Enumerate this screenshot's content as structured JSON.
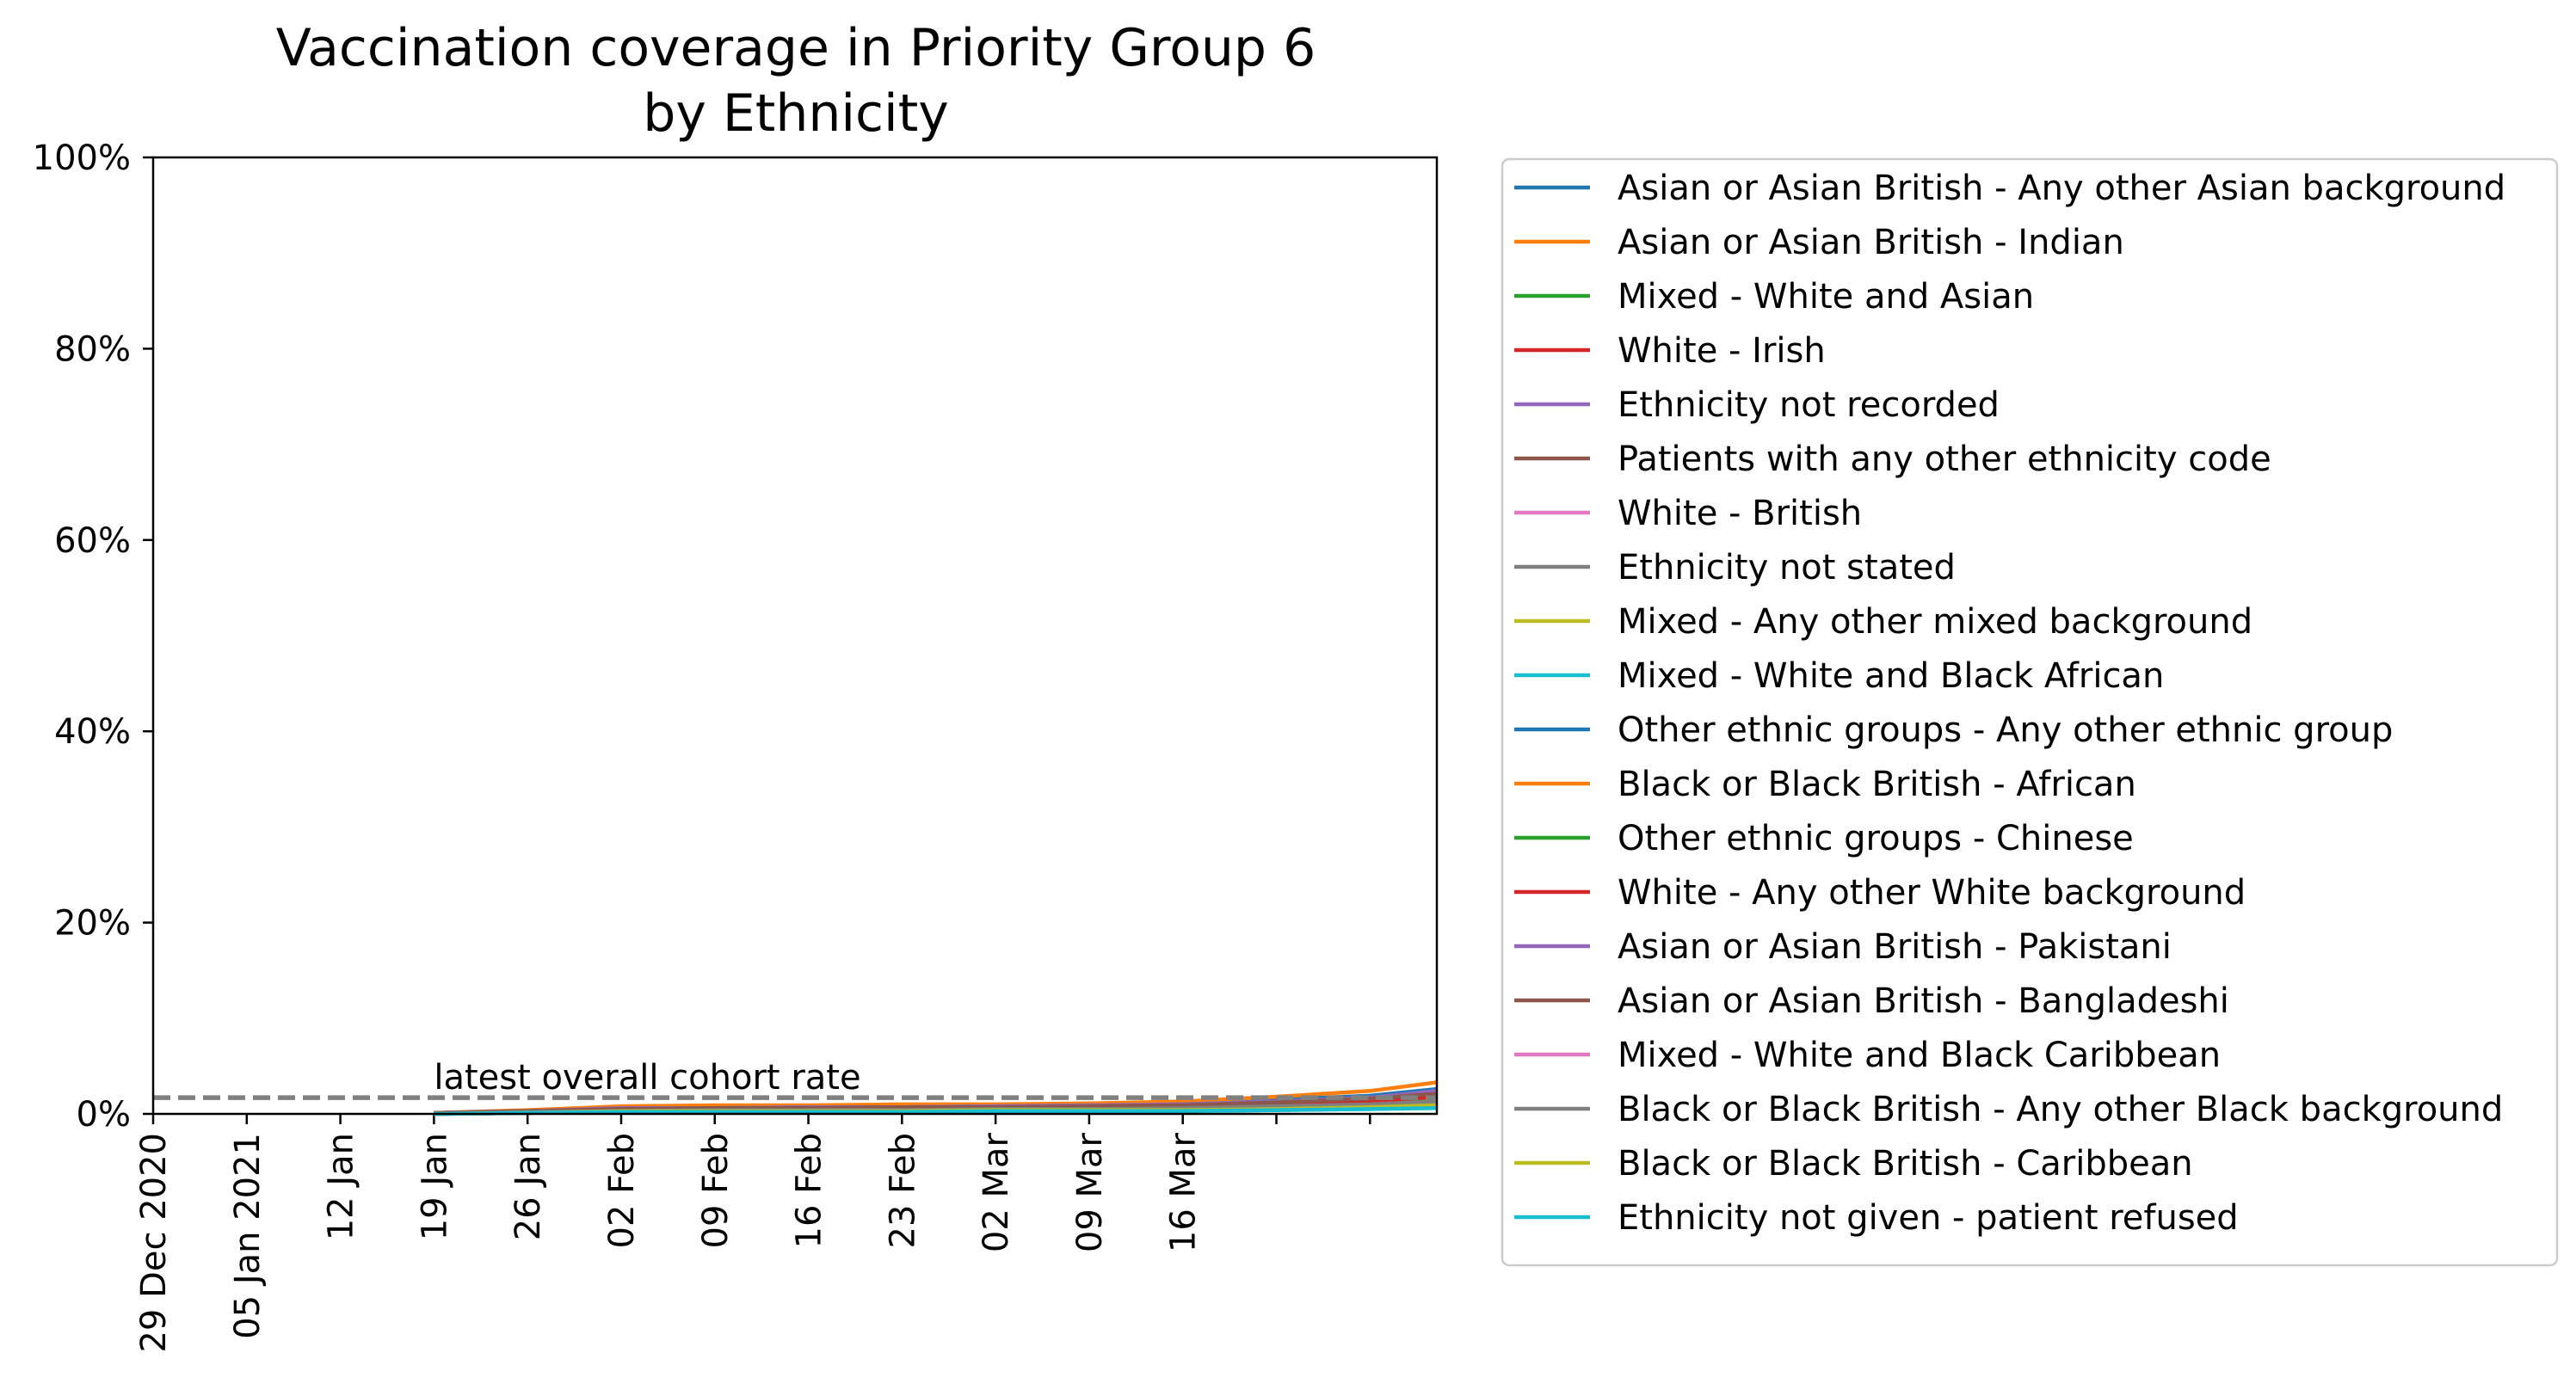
{
  "chart_data": {
    "type": "line",
    "title": [
      "Vaccination coverage in Priority Group 6",
      "by Ethnicity"
    ],
    "xlabel": "",
    "ylabel": "",
    "ylim": [
      0,
      100
    ],
    "y_ticks": [
      0,
      20,
      40,
      60,
      80,
      100
    ],
    "y_tick_labels": [
      "0%",
      "20%",
      "40%",
      "60%",
      "80%",
      "100%"
    ],
    "x_ticks": [
      "2020-12-29",
      "2021-01-05",
      "2021-01-12",
      "2021-01-19",
      "2021-01-26",
      "2021-02-02",
      "2021-02-09",
      "2021-02-16",
      "2021-02-23",
      "2021-03-02",
      "2021-03-09",
      "2021-03-16",
      "2021-03-23",
      "2021-03-30"
    ],
    "x_tick_labels": [
      "29 Dec 2020",
      "05 Jan 2021",
      "12 Jan",
      "19 Jan",
      "26 Jan",
      "02 Feb",
      "09 Feb",
      "16 Feb",
      "23 Feb",
      "02 Mar",
      "09 Mar",
      "16 Mar",
      "",
      ""
    ],
    "xlim": [
      "2020-12-29",
      "2021-04-04"
    ],
    "grid": false,
    "legend_position": "outside-right",
    "x": [
      "2021-01-19",
      "2021-01-26",
      "2021-02-02",
      "2021-02-09",
      "2021-02-16",
      "2021-02-23",
      "2021-03-02",
      "2021-03-09",
      "2021-03-16",
      "2021-03-23",
      "2021-03-30",
      "2021-04-04"
    ],
    "series": [
      {
        "name": "Asian or Asian British - Any other Asian background",
        "color": "#1f77b4",
        "values": [
          0.1,
          0.3,
          0.6,
          0.7,
          0.8,
          0.8,
          0.9,
          1.0,
          1.1,
          1.5,
          1.9,
          2.6
        ]
      },
      {
        "name": "Asian or Asian British - Indian",
        "color": "#ff7f0e",
        "values": [
          0.1,
          0.4,
          0.8,
          0.9,
          0.9,
          1.0,
          1.0,
          1.1,
          1.3,
          1.8,
          2.4,
          3.3
        ]
      },
      {
        "name": "Mixed - White and Asian",
        "color": "#2ca02c",
        "values": [
          0.0,
          0.2,
          0.4,
          0.5,
          0.5,
          0.6,
          0.6,
          0.7,
          0.8,
          1.0,
          1.3,
          1.7
        ]
      },
      {
        "name": "White - Irish",
        "color": "#d62728",
        "values": [
          0.0,
          0.2,
          0.5,
          0.6,
          0.6,
          0.7,
          0.7,
          0.8,
          0.9,
          1.2,
          1.6,
          2.2
        ]
      },
      {
        "name": "Ethnicity not recorded",
        "color": "#9467bd",
        "values": [
          0.0,
          0.1,
          0.3,
          0.3,
          0.4,
          0.4,
          0.4,
          0.5,
          0.5,
          0.7,
          0.9,
          1.2
        ]
      },
      {
        "name": "Patients with any other ethnicity code",
        "color": "#8c564b",
        "values": [
          0.1,
          0.3,
          0.5,
          0.6,
          0.6,
          0.7,
          0.7,
          0.8,
          0.9,
          1.2,
          1.5,
          2.0
        ]
      },
      {
        "name": "White - British",
        "color": "#e377c2",
        "values": [
          0.0,
          0.2,
          0.4,
          0.5,
          0.5,
          0.5,
          0.6,
          0.6,
          0.7,
          0.9,
          1.1,
          1.5
        ]
      },
      {
        "name": "Ethnicity not stated",
        "color": "#7f7f7f",
        "values": [
          0.0,
          0.2,
          0.4,
          0.4,
          0.5,
          0.5,
          0.5,
          0.6,
          0.6,
          0.8,
          1.0,
          1.4
        ]
      },
      {
        "name": "Mixed - Any other mixed background",
        "color": "#bcbd22",
        "values": [
          0.0,
          0.1,
          0.3,
          0.3,
          0.3,
          0.4,
          0.4,
          0.4,
          0.5,
          0.6,
          0.8,
          1.0
        ]
      },
      {
        "name": "Mixed - White and Black African",
        "color": "#17becf",
        "values": [
          0.0,
          0.1,
          0.2,
          0.2,
          0.2,
          0.3,
          0.3,
          0.3,
          0.3,
          0.4,
          0.5,
          0.7
        ]
      },
      {
        "name": "Other ethnic groups - Any other ethnic group",
        "color": "#1f77b4",
        "values": [
          0.1,
          0.3,
          0.5,
          0.6,
          0.7,
          0.7,
          0.8,
          0.8,
          1.0,
          1.3,
          1.7,
          2.3
        ]
      },
      {
        "name": "Black or Black British - African",
        "color": "#ff7f0e",
        "values": [
          0.0,
          0.2,
          0.4,
          0.5,
          0.5,
          0.6,
          0.6,
          0.7,
          0.8,
          1.0,
          1.4,
          1.9
        ]
      },
      {
        "name": "Other ethnic groups - Chinese",
        "color": "#2ca02c",
        "values": [
          0.0,
          0.2,
          0.4,
          0.4,
          0.5,
          0.5,
          0.5,
          0.6,
          0.7,
          0.9,
          1.2,
          1.6
        ]
      },
      {
        "name": "White - Any other White background",
        "color": "#d62728",
        "values": [
          0.0,
          0.2,
          0.4,
          0.5,
          0.5,
          0.6,
          0.6,
          0.7,
          0.8,
          1.0,
          1.3,
          1.8
        ]
      },
      {
        "name": "Asian or Asian British - Pakistani",
        "color": "#9467bd",
        "values": [
          0.1,
          0.3,
          0.6,
          0.6,
          0.7,
          0.7,
          0.8,
          0.9,
          1.0,
          1.3,
          1.7,
          2.4
        ]
      },
      {
        "name": "Asian or Asian British - Bangladeshi",
        "color": "#8c564b",
        "values": [
          0.1,
          0.3,
          0.5,
          0.6,
          0.6,
          0.7,
          0.7,
          0.8,
          0.9,
          1.2,
          1.6,
          2.1
        ]
      },
      {
        "name": "Mixed - White and Black Caribbean",
        "color": "#e377c2",
        "values": [
          0.0,
          0.1,
          0.3,
          0.3,
          0.4,
          0.4,
          0.4,
          0.5,
          0.5,
          0.7,
          0.9,
          1.2
        ]
      },
      {
        "name": "Black or Black British - Any other Black background",
        "color": "#7f7f7f",
        "values": [
          0.0,
          0.2,
          0.3,
          0.4,
          0.4,
          0.4,
          0.5,
          0.5,
          0.6,
          0.8,
          1.0,
          1.3
        ]
      },
      {
        "name": "Black or Black British - Caribbean",
        "color": "#bcbd22",
        "values": [
          0.0,
          0.1,
          0.3,
          0.3,
          0.3,
          0.3,
          0.4,
          0.4,
          0.4,
          0.5,
          0.7,
          0.9
        ]
      },
      {
        "name": "Ethnicity not given - patient refused",
        "color": "#17becf",
        "values": [
          0.0,
          0.1,
          0.2,
          0.2,
          0.2,
          0.2,
          0.3,
          0.3,
          0.3,
          0.4,
          0.5,
          0.6
        ]
      }
    ],
    "reference_line": {
      "label": "latest overall cohort rate",
      "value": 1.7,
      "color": "#808080",
      "style": "dashed"
    }
  }
}
